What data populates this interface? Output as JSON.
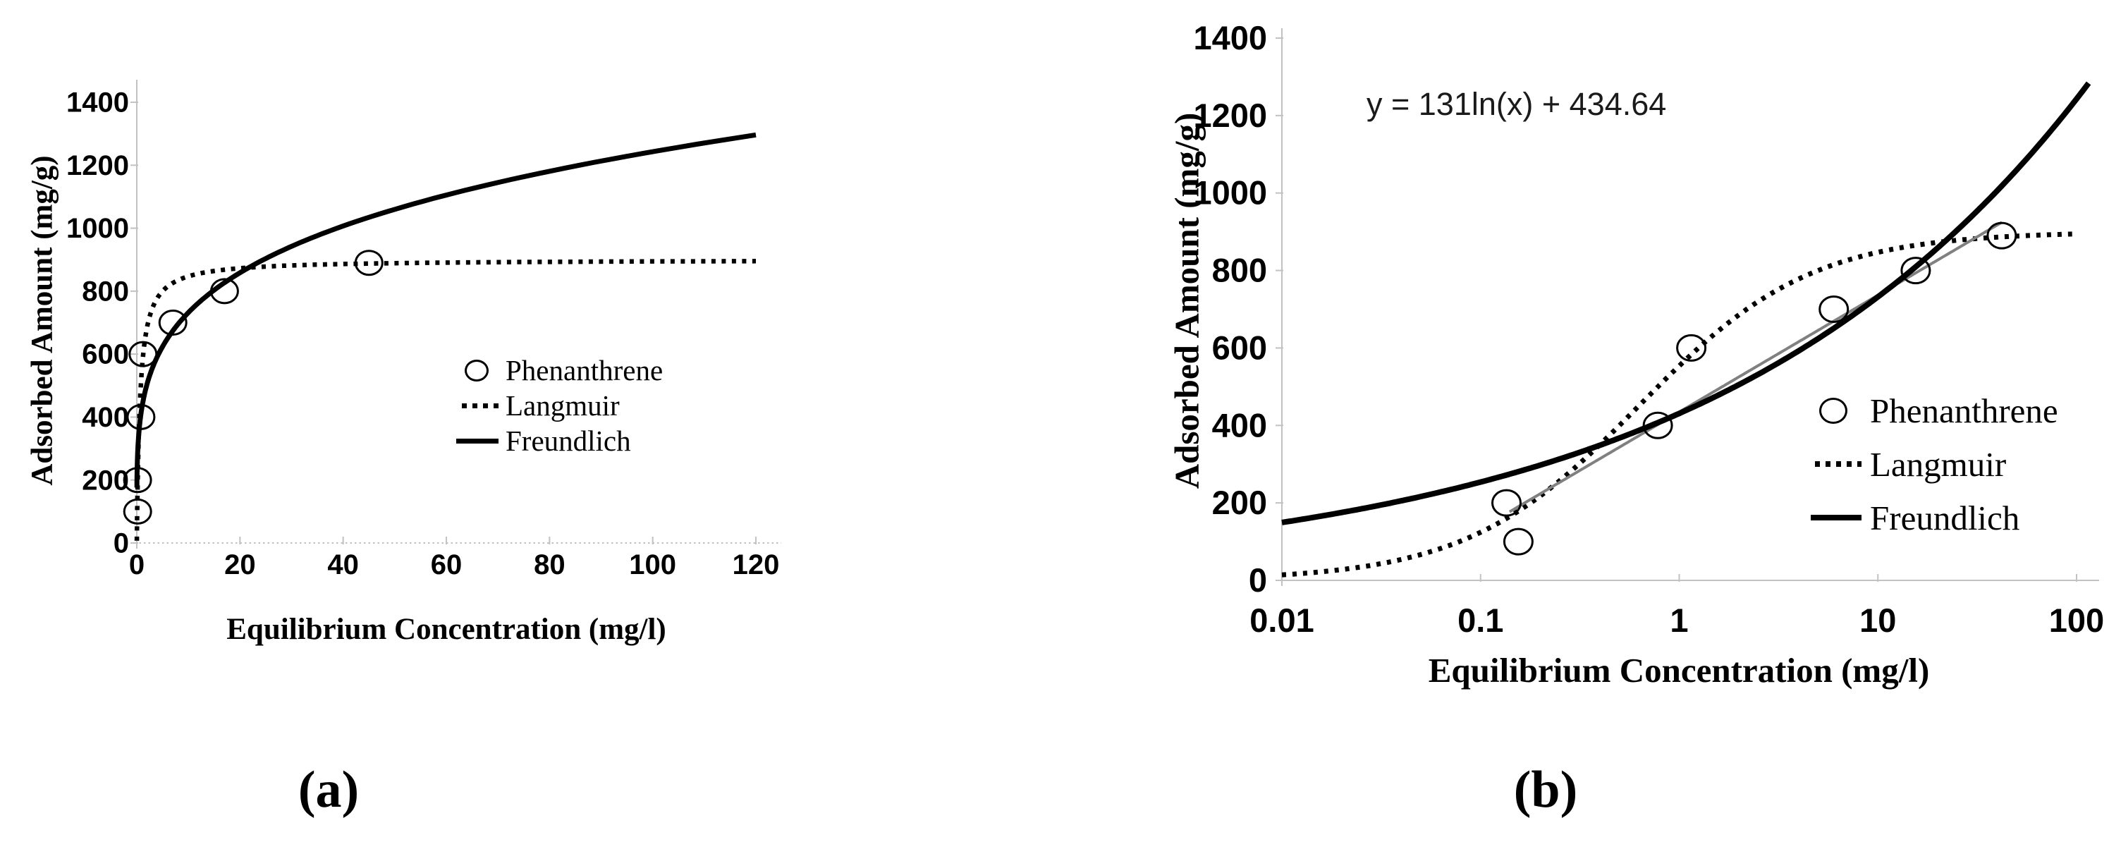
{
  "figure": {
    "captions": {
      "a": "(a)",
      "b": "(b)"
    },
    "colors": {
      "series": "#000000",
      "fit_line": "#808080",
      "axis": "#c2c2c2",
      "text": "#000000"
    }
  },
  "chart_data": [
    {
      "id": "a",
      "type": "scatter",
      "xlabel": "Equilibrium Concentration (mg/l)",
      "ylabel": "Adsorbed Amount  (mg/g)",
      "x_scale": "linear",
      "xlim": [
        0,
        120
      ],
      "ylim": [
        0,
        1400
      ],
      "grid": false,
      "legend_position": "inside-center-right",
      "x_ticks": [
        {
          "v": 0,
          "t": "0"
        },
        {
          "v": 20,
          "t": "20"
        },
        {
          "v": 40,
          "t": "40"
        },
        {
          "v": 60,
          "t": "60"
        },
        {
          "v": 80,
          "t": "80"
        },
        {
          "v": 100,
          "t": "100"
        },
        {
          "v": 120,
          "t": "120"
        }
      ],
      "y_ticks": [
        {
          "v": 0,
          "t": "0"
        },
        {
          "v": 200,
          "t": "200"
        },
        {
          "v": 400,
          "t": "400"
        },
        {
          "v": 600,
          "t": "600"
        },
        {
          "v": 800,
          "t": "800"
        },
        {
          "v": 1000,
          "t": "1000"
        },
        {
          "v": 1200,
          "t": "1200"
        },
        {
          "v": 1400,
          "t": "1400"
        }
      ],
      "series": [
        {
          "name": "Phenanthrene",
          "kind": "points",
          "marker": "open-circle",
          "points": [
            [
              0.15,
              200
            ],
            [
              0.17,
              100
            ],
            [
              0.8,
              400
            ],
            [
              1.2,
              600
            ],
            [
              7,
              700
            ],
            [
              17,
              800
            ],
            [
              45,
              890
            ]
          ]
        },
        {
          "name": "Langmuir",
          "kind": "langmuir",
          "style": "dotted",
          "qm": 900,
          "b": 1.6,
          "x_range": [
            0.005,
            120
          ]
        },
        {
          "name": "Freundlich",
          "kind": "freundlich",
          "style": "solid",
          "k": 431,
          "exp": 0.23,
          "x_range": [
            0.02,
            120
          ]
        }
      ]
    },
    {
      "id": "b",
      "type": "scatter",
      "equation": "y = 131ln(x) + 434.64",
      "xlabel": "Equilibrium Concentration (mg/l)",
      "ylabel": "Adsorbed Amount (mg/g)",
      "x_scale": "log",
      "xlim": [
        0.01,
        100
      ],
      "ylim": [
        0,
        1400
      ],
      "grid": false,
      "legend_position": "inside-lower-right",
      "x_ticks": [
        {
          "v": 0.01,
          "t": "0.01"
        },
        {
          "v": 0.1,
          "t": "0.1"
        },
        {
          "v": 1,
          "t": "1"
        },
        {
          "v": 10,
          "t": "10"
        },
        {
          "v": 100,
          "t": "100"
        }
      ],
      "y_ticks": [
        {
          "v": 0,
          "t": "0"
        },
        {
          "v": 200,
          "t": "200"
        },
        {
          "v": 400,
          "t": "400"
        },
        {
          "v": 600,
          "t": "600"
        },
        {
          "v": 800,
          "t": "800"
        },
        {
          "v": 1000,
          "t": "1000"
        },
        {
          "v": 1200,
          "t": "1200"
        },
        {
          "v": 1400,
          "t": "1400"
        }
      ],
      "series": [
        {
          "name": "Phenanthrene",
          "kind": "points",
          "marker": "open-circle",
          "points": [
            [
              0.135,
              200
            ],
            [
              0.155,
              100
            ],
            [
              0.78,
              400
            ],
            [
              1.15,
              600
            ],
            [
              6,
              700
            ],
            [
              15.5,
              800
            ],
            [
              42,
              890
            ]
          ]
        },
        {
          "name": "Langmuir",
          "kind": "langmuir",
          "style": "dotted",
          "qm": 900,
          "b": 1.6,
          "x_range": [
            0.01,
            95
          ]
        },
        {
          "name": "Freundlich",
          "kind": "freundlich",
          "style": "solid",
          "k": 431,
          "exp": 0.23,
          "x_range": [
            0.01,
            115
          ]
        },
        {
          "name": "Logarithmic fit",
          "kind": "logfit",
          "style": "thin-gray",
          "slope": 131,
          "intercept": 434.64,
          "x_range": [
            0.14,
            42
          ]
        }
      ]
    }
  ]
}
